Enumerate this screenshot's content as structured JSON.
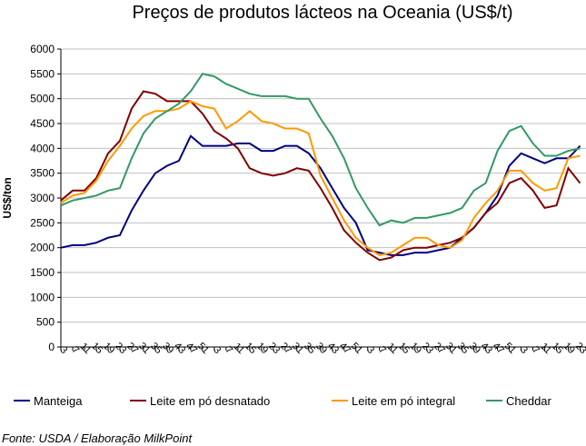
{
  "chart_data": {
    "type": "line",
    "title": "Preços de produtos lácteos na Oceania (US$/t)",
    "xlabel": "",
    "ylabel": "US$/ton",
    "ylim": [
      0,
      6000
    ],
    "yticks": [
      0,
      500,
      1000,
      1500,
      2000,
      2500,
      3000,
      3500,
      4000,
      4500,
      5000,
      5500,
      6000
    ],
    "grid": true,
    "legend_position": "bottom",
    "categories": [
      "3",
      "7",
      "11",
      "15",
      "19",
      "23",
      "27",
      "31",
      "35",
      "39",
      "43",
      "47",
      "51",
      "3",
      "7",
      "11",
      "15",
      "19",
      "23",
      "27",
      "31",
      "35",
      "39",
      "43",
      "47",
      "51",
      "3",
      "7",
      "11",
      "15",
      "19",
      "23",
      "27",
      "31",
      "35",
      "39",
      "43",
      "47",
      "51",
      "3",
      "7",
      "11",
      "15",
      "19",
      "23"
    ],
    "series": [
      {
        "name": "Manteiga",
        "color": "#000080",
        "values": [
          2000,
          2050,
          2050,
          2100,
          2200,
          2250,
          2750,
          3150,
          3500,
          3650,
          3750,
          4250,
          4050,
          4050,
          4050,
          4100,
          4100,
          3950,
          3950,
          4050,
          4050,
          3900,
          3600,
          3200,
          2800,
          2500,
          1950,
          1900,
          1850,
          1850,
          1900,
          1900,
          1950,
          2000,
          2200,
          2400,
          2700,
          3050,
          3650,
          3900,
          3800,
          3700,
          3800,
          3800,
          4050
        ]
      },
      {
        "name": "Leite em pó desnatado",
        "color": "#800000",
        "values": [
          2950,
          3150,
          3150,
          3400,
          3900,
          4150,
          4800,
          5150,
          5100,
          4950,
          4950,
          4950,
          4700,
          4350,
          4200,
          4000,
          3600,
          3500,
          3450,
          3500,
          3600,
          3550,
          3200,
          2800,
          2350,
          2100,
          1900,
          1750,
          1800,
          1950,
          2000,
          2000,
          2050,
          2100,
          2200,
          2400,
          2700,
          2900,
          3300,
          3400,
          3150,
          2800,
          2850,
          3600,
          3300
        ]
      },
      {
        "name": "Leite em pó integral",
        "color": "#FF9900",
        "values": [
          2900,
          3050,
          3100,
          3350,
          3750,
          4050,
          4400,
          4650,
          4750,
          4750,
          4800,
          4950,
          4850,
          4800,
          4400,
          4550,
          4750,
          4550,
          4500,
          4400,
          4400,
          4300,
          3450,
          3000,
          2550,
          2200,
          2000,
          1850,
          1900,
          2050,
          2200,
          2200,
          2050,
          2000,
          2150,
          2600,
          2900,
          3150,
          3550,
          3550,
          3300,
          3150,
          3200,
          3800,
          3850
        ]
      },
      {
        "name": "Cheddar",
        "color": "#339966",
        "values": [
          2850,
          2950,
          3000,
          3050,
          3150,
          3200,
          3800,
          4300,
          4600,
          4750,
          4900,
          5150,
          5500,
          5450,
          5300,
          5200,
          5100,
          5050,
          5050,
          5050,
          5000,
          5000,
          4600,
          4250,
          3800,
          3200,
          2800,
          2450,
          2550,
          2500,
          2600,
          2600,
          2650,
          2700,
          2800,
          3150,
          3300,
          3950,
          4350,
          4450,
          4100,
          3850,
          3850,
          3950,
          4000
        ]
      }
    ]
  },
  "footer": {
    "source": "Fonte: USDA / Elaboração MilkPoint"
  }
}
